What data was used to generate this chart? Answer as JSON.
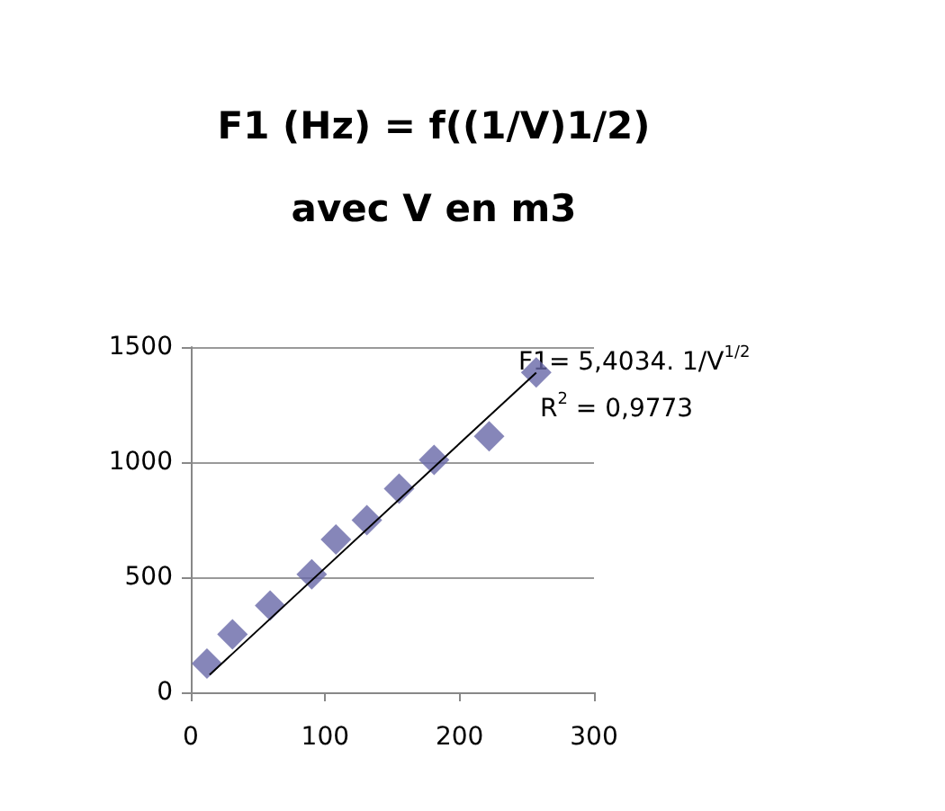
{
  "chart_data": {
    "type": "scatter",
    "title": "F1 (Hz) = f((1/V)1/2)\navec V en m3",
    "x": [
      12,
      31,
      59,
      90,
      108,
      131,
      155,
      181,
      222,
      257
    ],
    "series": [
      {
        "color": "#6868a8",
        "marker": "diamond",
        "values": [
          125,
          252,
          377,
          513,
          664,
          748,
          885,
          1010,
          1112,
          1390
        ]
      },
      {
        "type": "line",
        "color": "#000000",
        "marker": "none",
        "x": [
          14,
          257
        ],
        "values": [
          76,
          1389
        ]
      }
    ],
    "xlim": [
      0,
      300
    ],
    "xticks": [
      0,
      100,
      200,
      300
    ],
    "ylim": [
      0,
      1500
    ],
    "yticks": [
      0,
      500,
      1000,
      1500
    ],
    "grid": "y",
    "annotations": [
      "F1= 5,4034. 1/V$^{1/2}$",
      "R$^{2}$ = 0,9773"
    ]
  }
}
